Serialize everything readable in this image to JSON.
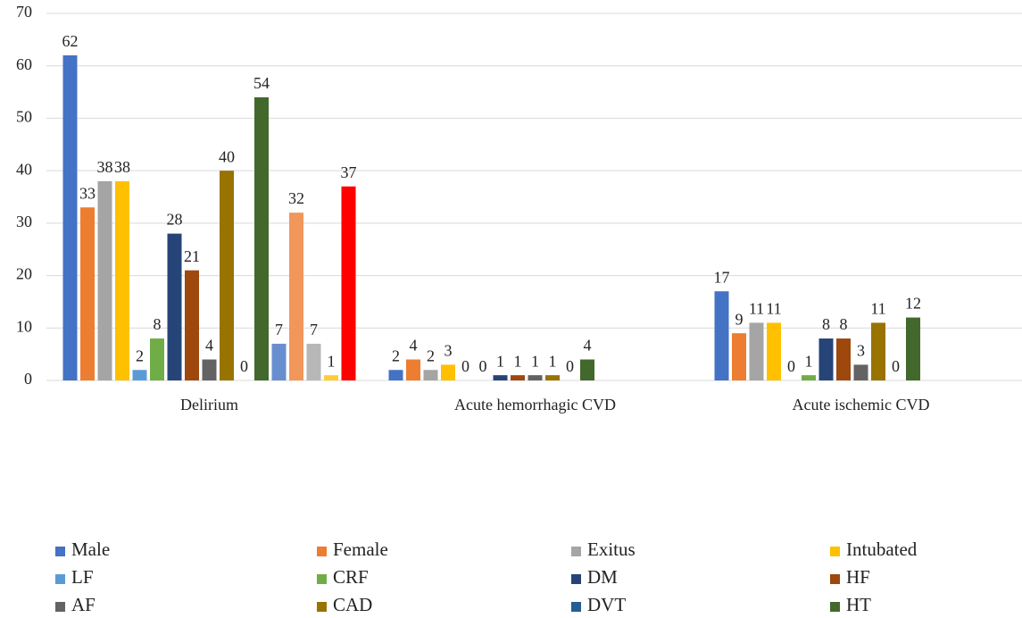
{
  "chart_data": {
    "type": "bar",
    "categories": [
      "Delirium",
      "Acute hemorrhagic CVD",
      "Acute ischemic CVD"
    ],
    "ylim": [
      0,
      70
    ],
    "yticks": [
      0,
      10,
      20,
      30,
      40,
      50,
      60,
      70
    ],
    "grid": true,
    "series": [
      {
        "name": "Male",
        "color": "#4472c4",
        "values": [
          62,
          2,
          17
        ]
      },
      {
        "name": "Female",
        "color": "#ed7d31",
        "values": [
          33,
          4,
          9
        ]
      },
      {
        "name": "Exitus",
        "color": "#a5a5a5",
        "values": [
          38,
          2,
          11
        ]
      },
      {
        "name": "Intubated",
        "color": "#ffc000",
        "values": [
          38,
          3,
          11
        ]
      },
      {
        "name": "LF",
        "color": "#5b9bd5",
        "values": [
          2,
          0,
          0
        ]
      },
      {
        "name": "CRF",
        "color": "#70ad47",
        "values": [
          8,
          0,
          1
        ]
      },
      {
        "name": "DM",
        "color": "#264478",
        "values": [
          28,
          1,
          8
        ]
      },
      {
        "name": "HF",
        "color": "#9e480e",
        "values": [
          21,
          1,
          8
        ]
      },
      {
        "name": "AF",
        "color": "#636363",
        "values": [
          4,
          1,
          3
        ]
      },
      {
        "name": "CAD",
        "color": "#997300",
        "values": [
          40,
          1,
          11
        ]
      },
      {
        "name": "DVT",
        "color": "#255e91",
        "values": [
          0,
          0,
          0
        ]
      },
      {
        "name": "HT",
        "color": "#43682b",
        "values": [
          54,
          4,
          12
        ]
      },
      {
        "color": "#698ed0",
        "values": [
          7,
          null,
          null
        ]
      },
      {
        "color": "#f1975a",
        "values": [
          32,
          null,
          null
        ]
      },
      {
        "color": "#b7b7b7",
        "values": [
          7,
          null,
          null
        ]
      },
      {
        "color": "#ffcd33",
        "values": [
          1,
          null,
          null
        ]
      },
      {
        "color": "#ff0000",
        "values": [
          37,
          null,
          null
        ]
      }
    ]
  }
}
